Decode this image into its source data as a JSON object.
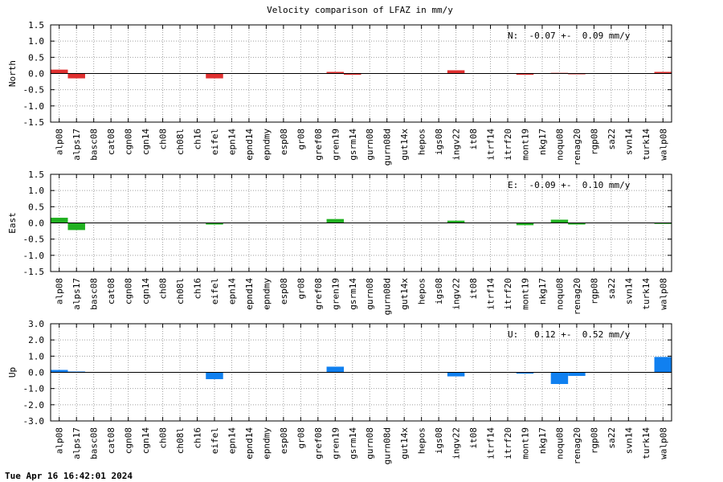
{
  "page": {
    "footer": "Tue Apr 16 16:42:01 2024"
  },
  "chart_data": {
    "type": "bar",
    "title": "Velocity comparison of LFAZ in mm/y",
    "categories": [
      "alp08",
      "alps17",
      "basc08",
      "cat08",
      "cgn08",
      "cgn14",
      "ch08",
      "ch08l",
      "ch16",
      "eifel",
      "epn14",
      "epnd14",
      "epndmy",
      "esp08",
      "gr08",
      "gref08",
      "gren19",
      "gsrm14",
      "gurn08",
      "gurn08d",
      "gut14x",
      "hepos",
      "igs08",
      "ingv22",
      "it08",
      "itrf14",
      "itrf20",
      "mont19",
      "nkg17",
      "noqu08",
      "renag20",
      "rgp08",
      "sa22",
      "svn14",
      "turk14",
      "walp08"
    ],
    "grid": true,
    "panels": [
      {
        "ylabel": "North",
        "ylim": [
          -1.5,
          1.5
        ],
        "yticks": [
          "1.5",
          "1.0",
          "0.5",
          "0.0",
          "-0.5",
          "-1.0",
          "-1.5"
        ],
        "ytick_values": [
          1.5,
          1.0,
          0.5,
          0.0,
          -0.5,
          -1.0,
          -1.5
        ],
        "summary": "N:  -0.07 +-  0.09 mm/y",
        "color": "#e03030",
        "values": [
          0.12,
          -0.15,
          0,
          0,
          0,
          0,
          0,
          0,
          0,
          -0.15,
          0,
          0,
          0,
          0,
          0,
          0,
          0.05,
          -0.04,
          0,
          0,
          0,
          0,
          0,
          0.1,
          0,
          0,
          0,
          -0.04,
          0,
          0.02,
          -0.02,
          0,
          0,
          0,
          0,
          0.05
        ]
      },
      {
        "ylabel": "East",
        "ylim": [
          -1.5,
          1.5
        ],
        "yticks": [
          "1.5",
          "1.0",
          "0.5",
          "0.0",
          "-0.5",
          "-1.0",
          "-1.5"
        ],
        "ytick_values": [
          1.5,
          1.0,
          0.5,
          0.0,
          -0.5,
          -1.0,
          -1.5
        ],
        "summary": "E:  -0.09 +-  0.10 mm/y",
        "color": "#20b020",
        "values": [
          0.16,
          -0.22,
          0,
          0,
          0,
          0,
          0,
          0,
          0,
          -0.05,
          0,
          0,
          0,
          0,
          0,
          0,
          0.12,
          0,
          0,
          0,
          0,
          0,
          0,
          0.07,
          0,
          0,
          0,
          -0.07,
          0,
          0.1,
          -0.05,
          0,
          0,
          0,
          0,
          -0.03
        ]
      },
      {
        "ylabel": "Up",
        "ylim": [
          -3.0,
          3.0
        ],
        "yticks": [
          "3.0",
          "2.0",
          "1.0",
          "0.0",
          "-1.0",
          "-2.0",
          "-3.0"
        ],
        "ytick_values": [
          3.0,
          2.0,
          1.0,
          0.0,
          -1.0,
          -2.0,
          -3.0
        ],
        "summary": "U:   0.12 +-  0.52 mm/y",
        "color": "#1080f0",
        "values": [
          0.15,
          0.05,
          0,
          0,
          0,
          0,
          0,
          0,
          0,
          -0.42,
          0,
          0,
          0,
          0,
          0,
          0,
          0.35,
          0,
          0,
          0,
          0,
          0,
          0,
          -0.25,
          0,
          0,
          0,
          -0.08,
          0,
          -0.72,
          -0.22,
          0,
          0,
          0,
          0,
          0.95
        ]
      }
    ]
  }
}
